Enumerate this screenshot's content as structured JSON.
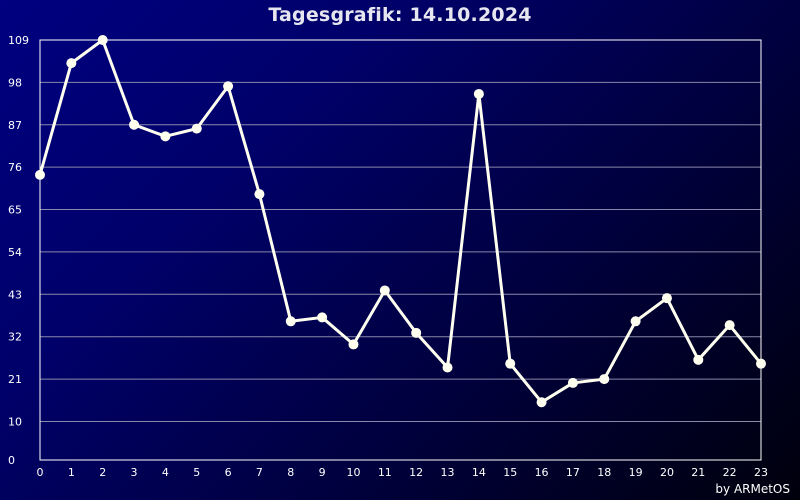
{
  "chart_data": {
    "type": "line",
    "title": "Tagesgrafik: 14.10.2024",
    "xlabel": "",
    "ylabel": "",
    "x": [
      0,
      1,
      2,
      3,
      4,
      5,
      6,
      7,
      8,
      9,
      10,
      11,
      12,
      13,
      14,
      15,
      16,
      17,
      18,
      19,
      20,
      21,
      22,
      23
    ],
    "values": [
      74,
      103,
      109,
      87,
      84,
      86,
      97,
      69,
      36,
      37,
      30,
      44,
      33,
      24,
      95,
      25,
      15,
      20,
      21,
      36,
      42,
      26,
      35,
      25
    ],
    "xlim": [
      0,
      23
    ],
    "ylim": [
      0,
      109
    ],
    "yticks": [
      0,
      10,
      21,
      32,
      43,
      54,
      65,
      76,
      87,
      98,
      109
    ],
    "grid": true,
    "colors": {
      "line": "#fffff0",
      "grid": "#8888aa",
      "axis": "#ffffff"
    }
  },
  "credit": "by ARMetOS"
}
